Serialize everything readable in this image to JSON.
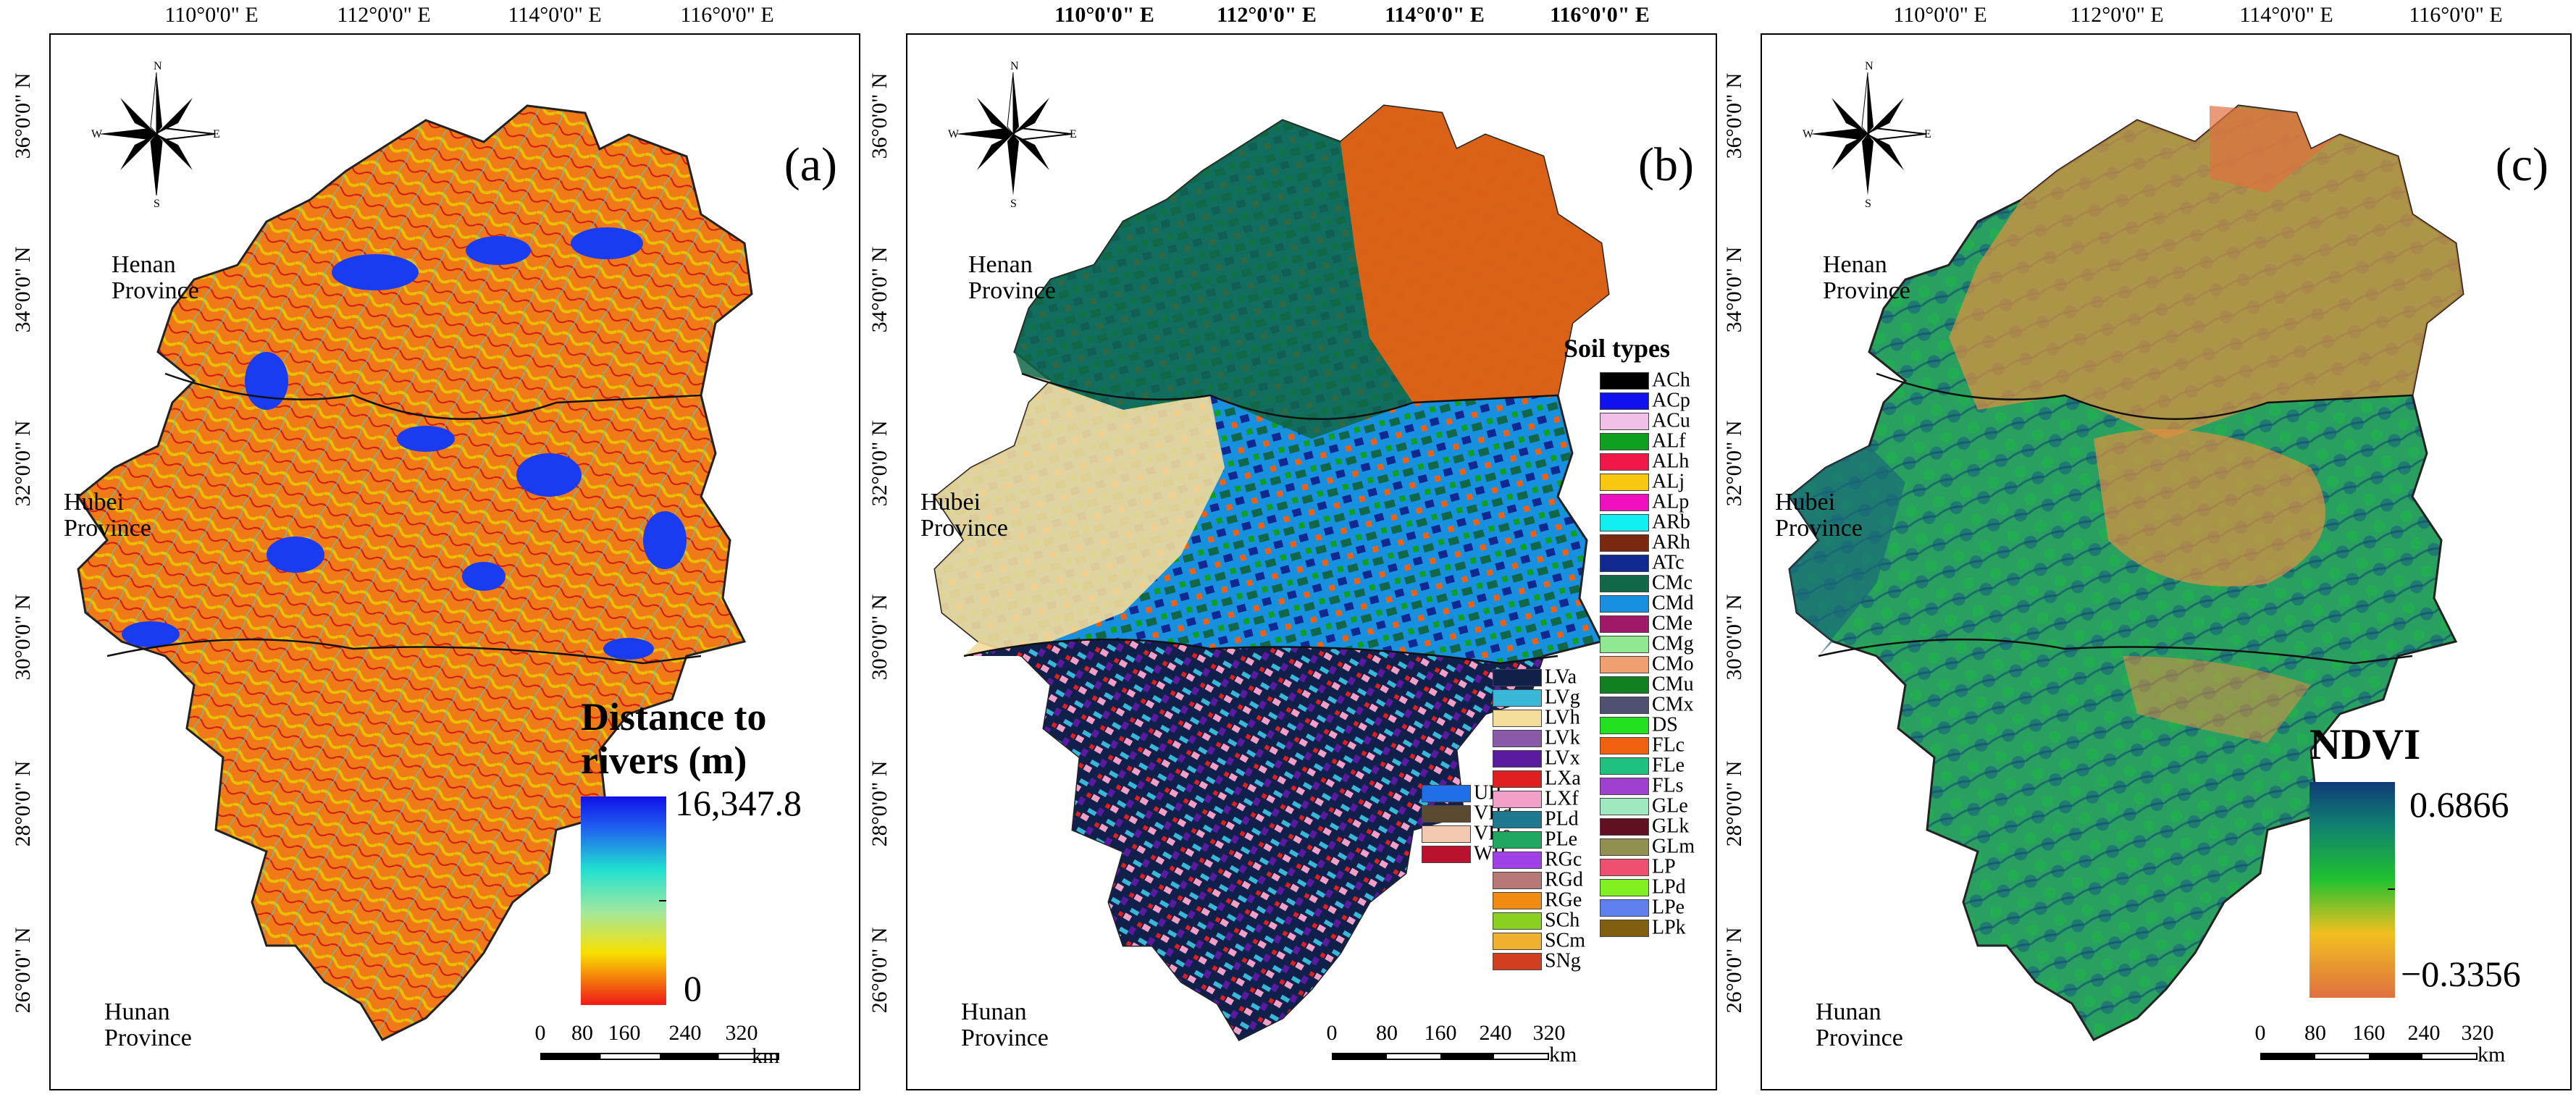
{
  "figure": {
    "longitude_labels": [
      "110°0'0\" E",
      "112°0'0\" E",
      "114°0'0\" E",
      "116°0'0\" E"
    ],
    "latitude_labels": [
      "36°0'0\" N",
      "34°0'0\" N",
      "32°0'0\" N",
      "30°0'0\" N",
      "28°0'0\" N",
      "26°0'0\" N"
    ],
    "provinces": {
      "henan": [
        "Henan",
        "Province"
      ],
      "hubei": [
        "Hubei",
        "Province"
      ],
      "hunan": [
        "Hunan",
        "Province"
      ]
    },
    "scale": {
      "ticks": [
        "0",
        "80",
        "160",
        "240",
        "320"
      ],
      "unit": "km"
    },
    "compass": {
      "n": "N",
      "s": "S",
      "e": "E",
      "w": "W"
    }
  },
  "panel_a": {
    "tag": "(a)",
    "legend_title_line1": "Distance to",
    "legend_title_line2": "rivers (m)",
    "ramp_max": "16,347.8",
    "ramp_min": "0",
    "colors": {
      "base": "#f07a18",
      "line": "#e8b400",
      "water": "#1a3cf0",
      "outline": "#222222"
    }
  },
  "panel_b": {
    "tag": "(b)",
    "legend_title": "Soil types",
    "soil_types_col1": [
      {
        "code": "UR",
        "color": "#1f6fe8"
      },
      {
        "code": "VRd",
        "color": "#5a4a32"
      },
      {
        "code": "VRe",
        "color": "#f2c9b0"
      },
      {
        "code": "WR",
        "color": "#b8122e"
      }
    ],
    "soil_types_col2": [
      {
        "code": "LVa",
        "color": "#10204a"
      },
      {
        "code": "LVg",
        "color": "#38b7d6"
      },
      {
        "code": "LVh",
        "color": "#f4dc9a"
      },
      {
        "code": "LVk",
        "color": "#8a5aa8"
      },
      {
        "code": "LVx",
        "color": "#5a1aa0"
      },
      {
        "code": "LXa",
        "color": "#e02020"
      },
      {
        "code": "LXf",
        "color": "#f2a0c8"
      },
      {
        "code": "PLd",
        "color": "#1e7890"
      },
      {
        "code": "PLe",
        "color": "#20a860"
      },
      {
        "code": "RGc",
        "color": "#a040e8"
      },
      {
        "code": "RGd",
        "color": "#b87878"
      },
      {
        "code": "RGe",
        "color": "#f08a10"
      },
      {
        "code": "SCh",
        "color": "#8ad020"
      },
      {
        "code": "SCm",
        "color": "#f0b030"
      },
      {
        "code": "SNg",
        "color": "#d04020"
      }
    ],
    "soil_types_col3": [
      {
        "code": "ACh",
        "color": "#000000"
      },
      {
        "code": "ACp",
        "color": "#1010f0"
      },
      {
        "code": "ACu",
        "color": "#f0c0e8"
      },
      {
        "code": "ALf",
        "color": "#10a020"
      },
      {
        "code": "ALh",
        "color": "#f01848"
      },
      {
        "code": "ALj",
        "color": "#f8c810"
      },
      {
        "code": "ALp",
        "color": "#f010c0"
      },
      {
        "code": "ARb",
        "color": "#10f0f0"
      },
      {
        "code": "ARh",
        "color": "#7a2810"
      },
      {
        "code": "ATc",
        "color": "#102890"
      },
      {
        "code": "CMc",
        "color": "#106848"
      },
      {
        "code": "CMd",
        "color": "#1890e0"
      },
      {
        "code": "CMe",
        "color": "#a01868"
      },
      {
        "code": "CMg",
        "color": "#90e890"
      },
      {
        "code": "CMo",
        "color": "#f0a070"
      },
      {
        "code": "CMu",
        "color": "#108020"
      },
      {
        "code": "CMx",
        "color": "#505070"
      },
      {
        "code": "DS",
        "color": "#20e020"
      },
      {
        "code": "FLc",
        "color": "#f06010"
      },
      {
        "code": "FLe",
        "color": "#20c080"
      },
      {
        "code": "FLs",
        "color": "#a040d0"
      },
      {
        "code": "GLe",
        "color": "#a0e8c0"
      },
      {
        "code": "GLk",
        "color": "#601020"
      },
      {
        "code": "GLm",
        "color": "#909050"
      },
      {
        "code": "LP",
        "color": "#f05070"
      },
      {
        "code": "LPd",
        "color": "#80f020"
      },
      {
        "code": "LPe",
        "color": "#6080f0"
      },
      {
        "code": "LPk",
        "color": "#806010"
      }
    ]
  },
  "panel_c": {
    "tag": "(c)",
    "legend_title": "NDVI",
    "ramp_max": "0.6866",
    "ramp_min": "−0.3356",
    "colors": {
      "low": "#e07040",
      "mid1": "#f0c020",
      "mid2": "#10c020",
      "high": "#103a78"
    }
  }
}
